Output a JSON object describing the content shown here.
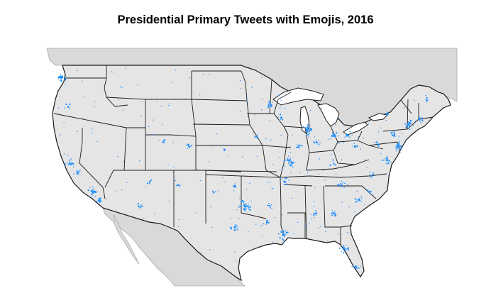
{
  "title": "Presidential Primary Tweets with Emojis, 2016",
  "colors": {
    "land": "#e5e5e5",
    "neighbor_land": "#d9d9d9",
    "border": "#1a1a1a",
    "dot": "#1e90ff",
    "background": "#ffffff"
  },
  "icons": [
    "tweet-dot"
  ]
}
